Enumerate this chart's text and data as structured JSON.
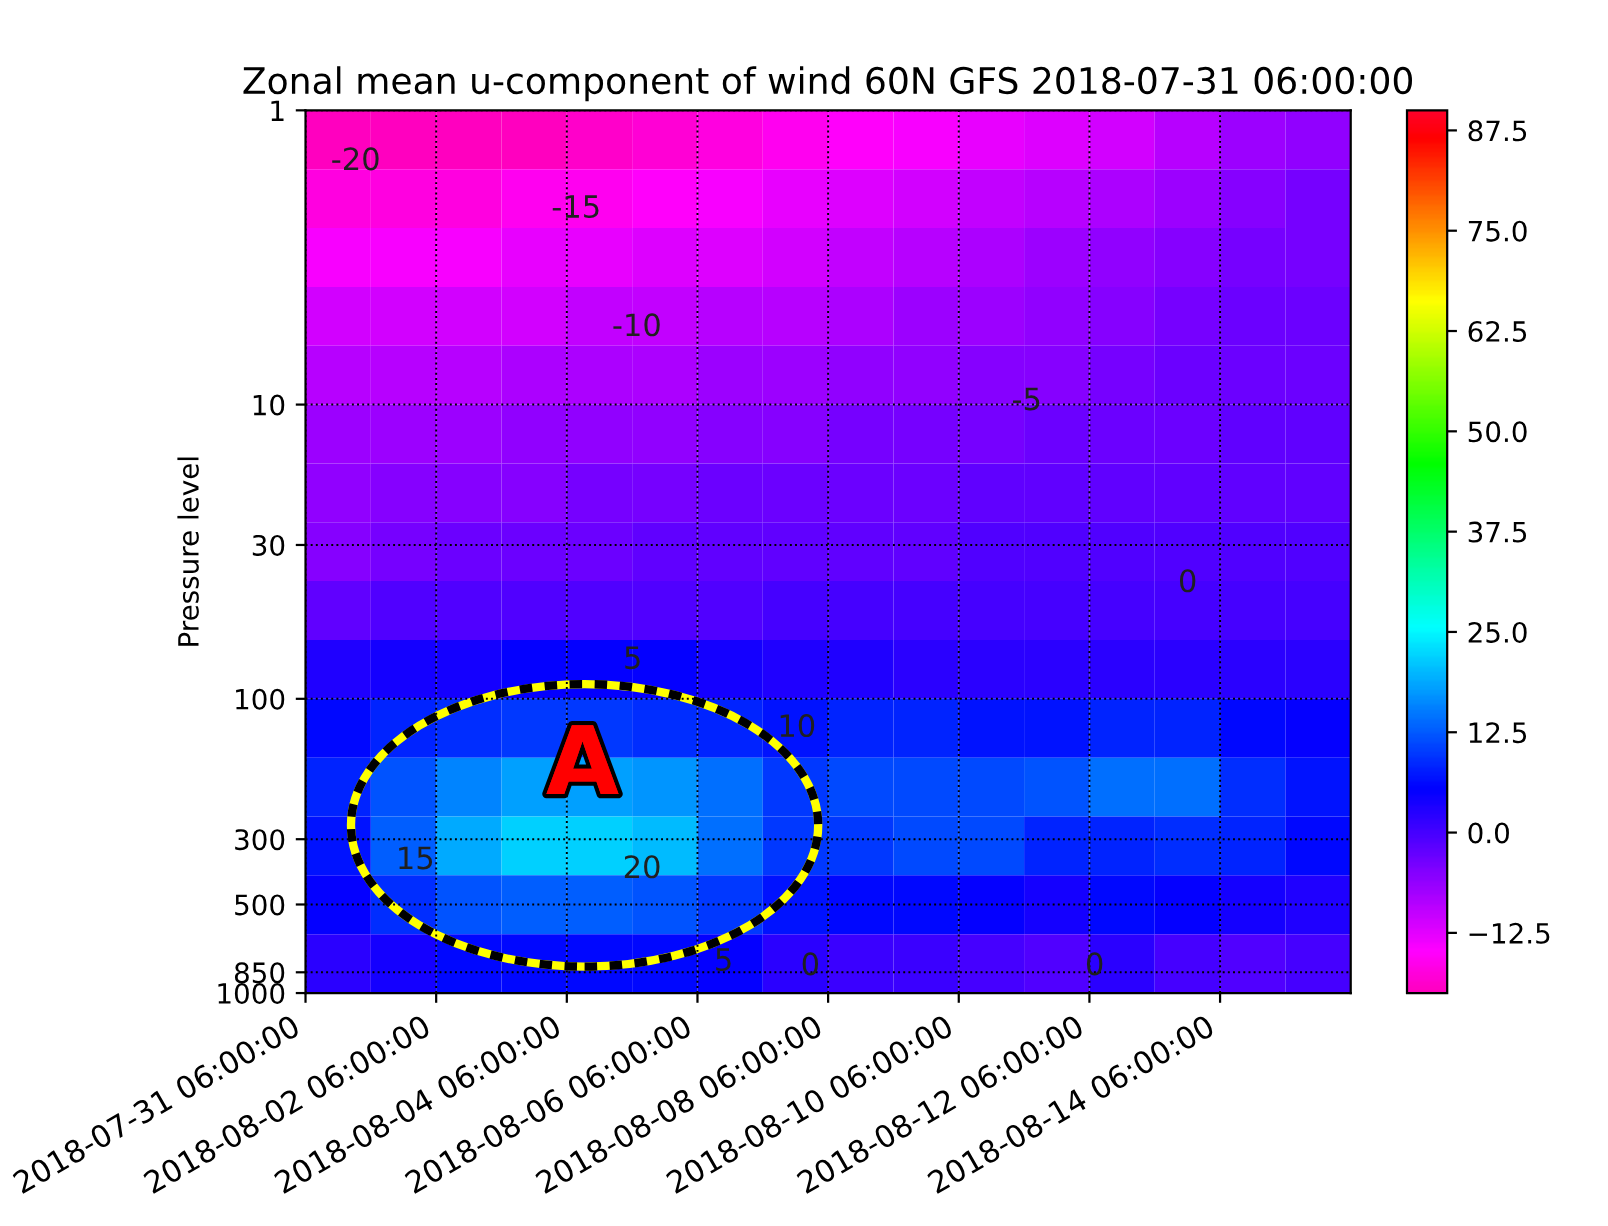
{
  "chart_data": {
    "type": "heatmap",
    "title": "Zonal mean u-component of wind 60N GFS 2018-07-31 06:00:00",
    "ylabel": "Pressure level",
    "log": "y",
    "grid": true,
    "line_style": "dotted",
    "xlim": [
      "2018-07-31T06:00",
      "2018-08-16T06:00"
    ],
    "xticks": [
      {
        "value": "2018-07-31T06:00",
        "label": "2018-07-31 06:00:00"
      },
      {
        "value": "2018-08-02T06:00",
        "label": "2018-08-02 06:00:00"
      },
      {
        "value": "2018-08-04T06:00",
        "label": "2018-08-04 06:00:00"
      },
      {
        "value": "2018-08-06T06:00",
        "label": "2018-08-06 06:00:00"
      },
      {
        "value": "2018-08-08T06:00",
        "label": "2018-08-08 06:00:00"
      },
      {
        "value": "2018-08-10T06:00",
        "label": "2018-08-10 06:00:00"
      },
      {
        "value": "2018-08-12T06:00",
        "label": "2018-08-12 06:00:00"
      },
      {
        "value": "2018-08-14T06:00",
        "label": "2018-08-14 06:00:00"
      }
    ],
    "ylim": [
      1000,
      1
    ],
    "yticks": [
      1,
      10,
      30,
      100,
      300,
      500,
      850,
      1000
    ],
    "clim": [
      -20,
      90
    ],
    "cticks": [
      {
        "value": -12.5,
        "label": "−12.5"
      },
      {
        "value": 0,
        "label": "0.0"
      },
      12.5,
      {
        "value": 25,
        "label": "25.0"
      },
      37.5,
      {
        "value": 50,
        "label": "50.0"
      },
      62.5,
      {
        "value": 75,
        "label": "75.0"
      },
      87.5
    ],
    "cells": [
      [
        -20,
        -20,
        -20,
        -20,
        -19,
        -18,
        -17,
        -16,
        -15,
        -14,
        -13,
        -12,
        -11,
        -9,
        -7,
        -6
      ],
      [
        -17,
        -17,
        -17,
        -16,
        -16,
        -15,
        -14,
        -13,
        -12,
        -11,
        -10,
        -9,
        -8,
        -7,
        -5,
        -4
      ],
      [
        -14,
        -14,
        -14,
        -13,
        -13,
        -12,
        -12,
        -11,
        -10,
        -9,
        -8,
        -7,
        -6,
        -5,
        -4,
        -4
      ],
      [
        -11,
        -11,
        -11,
        -11,
        -10,
        -10,
        -9,
        -9,
        -8,
        -7,
        -7,
        -6,
        -5,
        -4,
        -3,
        -3
      ],
      [
        -9,
        -9,
        -9,
        -8,
        -8,
        -8,
        -7,
        -7,
        -6,
        -6,
        -5,
        -5,
        -4,
        -3,
        -3,
        -3
      ],
      [
        -7,
        -7,
        -7,
        -6,
        -6,
        -6,
        -5,
        -5,
        -4,
        -4,
        -4,
        -3,
        -3,
        -3,
        -2,
        -2
      ],
      [
        -6,
        -5,
        -5,
        -5,
        -4,
        -4,
        -3,
        -3,
        -3,
        -3,
        -2,
        -2,
        -2,
        -2,
        -2,
        -2
      ],
      [
        -5,
        -4,
        -3,
        -3,
        -3,
        -2,
        -2,
        -2,
        -2,
        -2,
        -1,
        -1,
        -1,
        -1,
        -1,
        -1
      ],
      [
        -2,
        -1,
        -1,
        -1,
        -1,
        -1,
        -1,
        0,
        0,
        0,
        0,
        0,
        0,
        0,
        0,
        0
      ],
      [
        3,
        4,
        4,
        5,
        5,
        5,
        4,
        3,
        3,
        2,
        2,
        2,
        2,
        2,
        2,
        2
      ],
      [
        6,
        8,
        9,
        10,
        10,
        9,
        8,
        7,
        8,
        8,
        7,
        7,
        8,
        8,
        6,
        5
      ],
      [
        8,
        12,
        16,
        18,
        18,
        17,
        14,
        10,
        11,
        11,
        11,
        12,
        14,
        14,
        9,
        7
      ],
      [
        7,
        13,
        19,
        22,
        22,
        20,
        14,
        10,
        10,
        11,
        11,
        8,
        8,
        9,
        8,
        6
      ],
      [
        5,
        9,
        12,
        13,
        13,
        12,
        10,
        7,
        6,
        6,
        5,
        4,
        6,
        5,
        4,
        3
      ],
      [
        2,
        4,
        6,
        6,
        6,
        6,
        5,
        2,
        1,
        1,
        0,
        -1,
        2,
        0,
        -1,
        0
      ]
    ],
    "annotations": [
      "-20",
      "-15",
      "-10",
      "-5",
      "0",
      "5",
      "10",
      "15",
      "20",
      "5",
      "0",
      "0",
      "A"
    ]
  }
}
